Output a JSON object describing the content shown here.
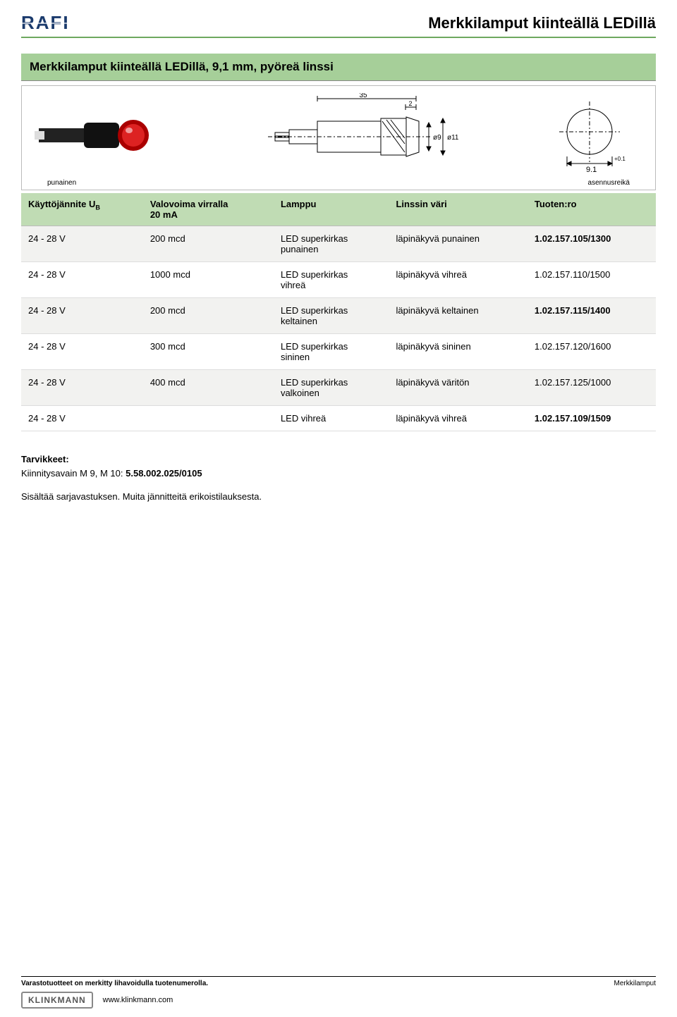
{
  "header": {
    "logo_text": "RAFI",
    "page_title": "Merkkilamput kiinteällä LEDillä"
  },
  "section_title": "Merkkilamput kiinteällä LEDillä, 9,1 mm, pyöreä linssi",
  "diagram": {
    "left_label": "punainen",
    "right_label": "asennusreikä",
    "dim_35": "35",
    "dim_2": "2",
    "dim_phi9": "ø9",
    "dim_phi11": "ø11",
    "dim_91": "9.1",
    "dim_tol": "+0.1"
  },
  "table": {
    "headers": {
      "col1_a": "Käyttöjännite U",
      "col1_sub": "B",
      "col2_a": "Valovoima virralla",
      "col2_b": "20 mA",
      "col3": "Lamppu",
      "col4": "Linssin väri",
      "col5": "Tuoten:ro"
    },
    "rows": [
      {
        "voltage": "24 - 28 V",
        "intensity": "200 mcd",
        "lamp_a": "LED superkirkas",
        "lamp_b": "punainen",
        "lens": "läpinäkyvä punainen",
        "pn": "1.02.157.105/1300",
        "bold": true
      },
      {
        "voltage": "24 - 28 V",
        "intensity": "1000 mcd",
        "lamp_a": "LED superkirkas",
        "lamp_b": "vihreä",
        "lens": "läpinäkyvä vihreä",
        "pn": "1.02.157.110/1500",
        "bold": false
      },
      {
        "voltage": "24 - 28 V",
        "intensity": "200 mcd",
        "lamp_a": "LED superkirkas",
        "lamp_b": "keltainen",
        "lens": "läpinäkyvä keltainen",
        "pn": "1.02.157.115/1400",
        "bold": true
      },
      {
        "voltage": "24 - 28 V",
        "intensity": "300 mcd",
        "lamp_a": "LED superkirkas",
        "lamp_b": "sininen",
        "lens": "läpinäkyvä sininen",
        "pn": "1.02.157.120/1600",
        "bold": false
      },
      {
        "voltage": "24 - 28 V",
        "intensity": "400 mcd",
        "lamp_a": "LED superkirkas",
        "lamp_b": "valkoinen",
        "lens": "läpinäkyvä väritön",
        "pn": "1.02.157.125/1000",
        "bold": false
      },
      {
        "voltage": "24 - 28 V",
        "intensity": "",
        "lamp_a": "LED vihreä",
        "lamp_b": "",
        "lens": "läpinäkyvä vihreä",
        "pn": "1.02.157.109/1509",
        "bold": true
      }
    ]
  },
  "notes": {
    "tarv_label": "Tarvikkeet:",
    "tarv_text": "Kiinnitysavain M 9, M 10: ",
    "tarv_pn": "5.58.002.025/0105",
    "note2": "Sisältää sarjavastuksen. Muita jännitteitä erikoistilauksesta."
  },
  "footer": {
    "left": "Varastotuotteet on merkitty lihavoidulla tuotenumerolla.",
    "right": "Merkkilamput",
    "brand": "KLINKMANN",
    "url": "www.klinkmann.com"
  },
  "style": {
    "accent_green": "#a6cf99",
    "header_green": "#c0dcb4",
    "border": "#bbb"
  }
}
